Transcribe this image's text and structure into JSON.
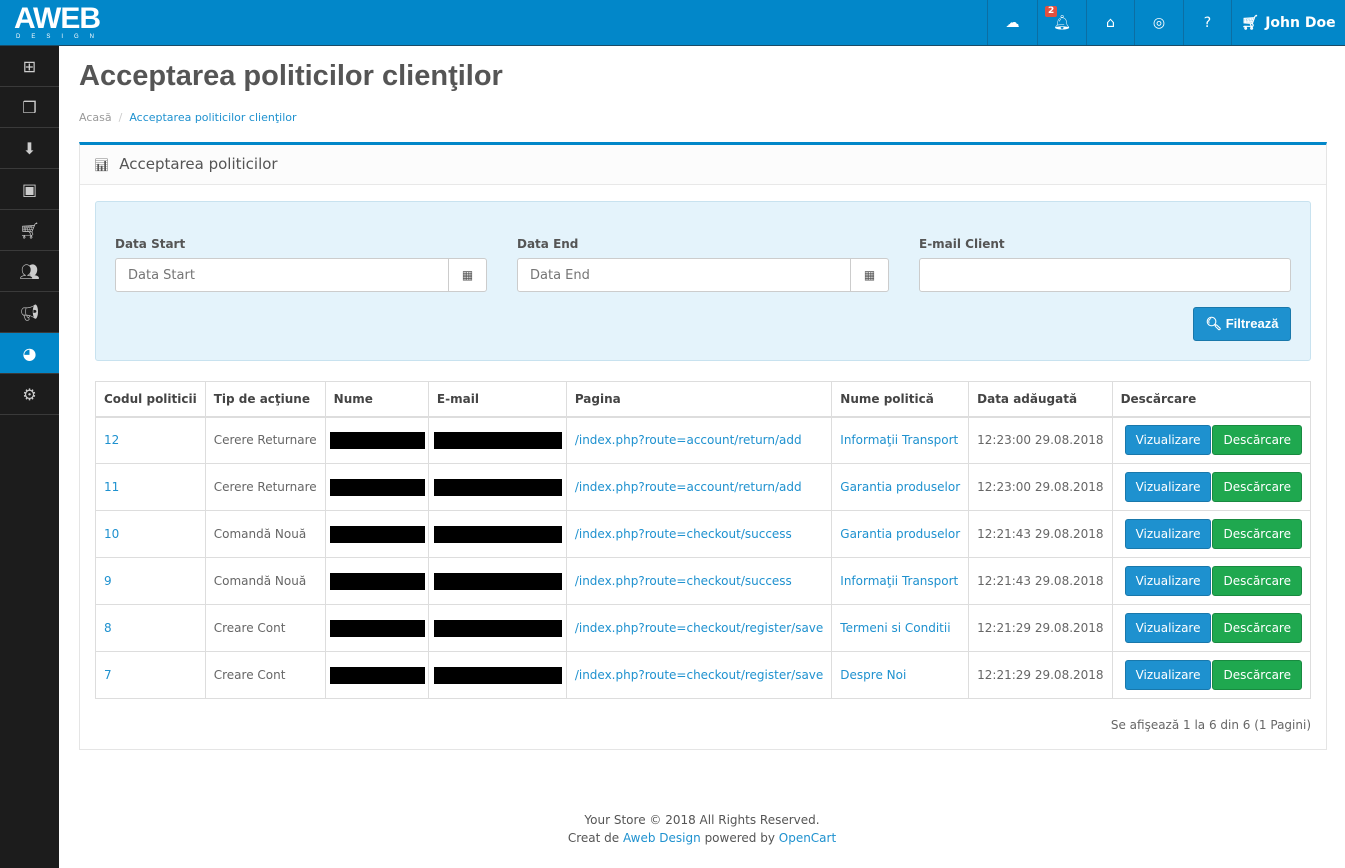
{
  "header": {
    "logo": "AWEB",
    "logo_sub": "DESIGN",
    "notif_count": "2",
    "user": "John Doe"
  },
  "sidebar": {
    "items": [
      "dashboard",
      "catalog",
      "extensions",
      "design",
      "sales",
      "customers",
      "marketing",
      "reports",
      "system"
    ],
    "active": "reports"
  },
  "page": {
    "title": "Acceptarea politicilor clienţilor",
    "breadcrumb": [
      "Acasă",
      "Acceptarea politicilor clienţilor"
    ]
  },
  "panel": {
    "heading": "Acceptarea politicilor"
  },
  "filter": {
    "start_label": "Data Start",
    "start_placeholder": "Data Start",
    "end_label": "Data End",
    "end_placeholder": "Data End",
    "email_label": "E-mail Client",
    "email_value": "",
    "button": "Filtrează"
  },
  "table": {
    "headers": [
      "Codul politicii",
      "Tip de acţiune",
      "Nume",
      "E-mail",
      "Pagina",
      "Nume politică",
      "Data adăugată",
      "Descărcare"
    ],
    "rows": [
      {
        "id": "12",
        "action": "Cerere Returnare",
        "page": "/index.php?route=account/return/add",
        "policy": "Informaţii Transport",
        "date": "12:23:00 29.08.2018"
      },
      {
        "id": "11",
        "action": "Cerere Returnare",
        "page": "/index.php?route=account/return/add",
        "policy": "Garantia produselor",
        "date": "12:23:00 29.08.2018"
      },
      {
        "id": "10",
        "action": "Comandă Nouă",
        "page": "/index.php?route=checkout/success",
        "policy": "Garantia produselor",
        "date": "12:21:43 29.08.2018"
      },
      {
        "id": "9",
        "action": "Comandă Nouă",
        "page": "/index.php?route=checkout/success",
        "policy": "Informaţii Transport",
        "date": "12:21:43 29.08.2018"
      },
      {
        "id": "8",
        "action": "Creare Cont",
        "page": "/index.php?route=checkout/register/save",
        "policy": "Termeni si Conditii",
        "date": "12:21:29 29.08.2018"
      },
      {
        "id": "7",
        "action": "Creare Cont",
        "page": "/index.php?route=checkout/register/save",
        "policy": "Despre Noi",
        "date": "12:21:29 29.08.2018"
      }
    ],
    "view_label": "Vizualizare",
    "download_label": "Descărcare"
  },
  "pagination": "Se afişează 1 la 6 din 6 (1 Pagini)",
  "footer": {
    "line1": "Your Store © 2018 All Rights Reserved.",
    "pre": "Creat de ",
    "aweb": "Aweb Design",
    "mid": " powered by ",
    "opencart": "OpenCart"
  },
  "colors": {
    "primary": "#0287c9",
    "success": "#1fa84f",
    "sidebar": "#1c1c1c"
  }
}
